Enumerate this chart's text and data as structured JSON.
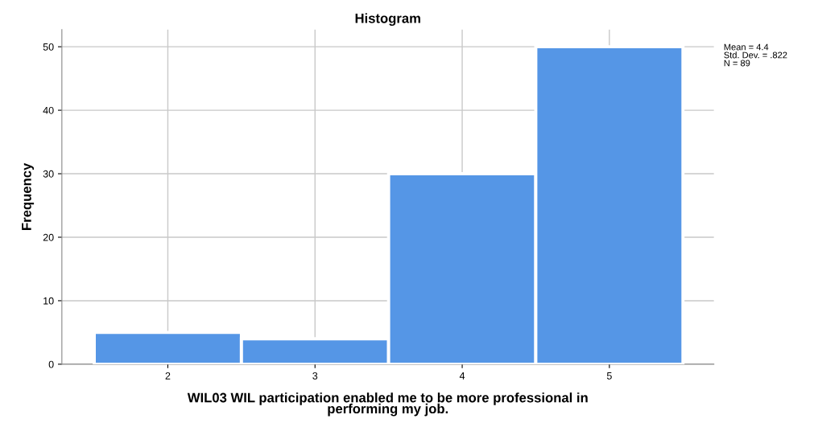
{
  "chart_data": {
    "type": "histogram",
    "title": "Histogram",
    "xlabel": "WIL03 WIL participation enabled me to be more professional in\nperforming my job.",
    "ylabel": "Frequency",
    "bins": [
      1.5,
      2.5,
      3.5,
      4.5,
      5.5
    ],
    "values": [
      5,
      4,
      30,
      50
    ],
    "color": "#5596e6",
    "xlim": [
      1.28,
      5.71
    ],
    "xticks": [
      2,
      3,
      4,
      5
    ],
    "ylim": [
      0,
      52.7
    ],
    "yticks": [
      0,
      10,
      20,
      30,
      40,
      50
    ],
    "grid": true,
    "annotations": [
      "Mean = 4.4",
      "Std. Dev. = .822",
      "N = 89"
    ]
  }
}
